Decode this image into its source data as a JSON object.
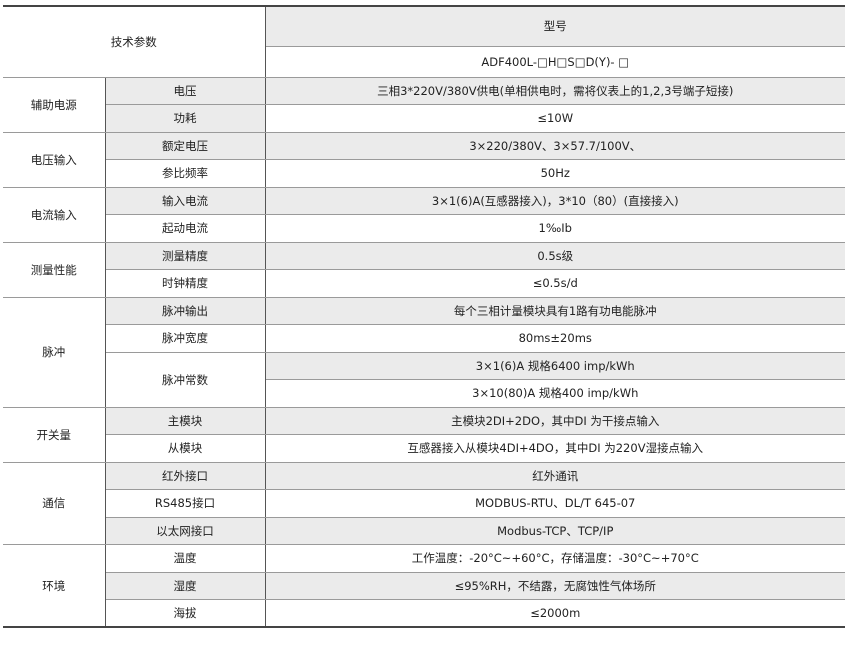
{
  "header": {
    "label": "技术参数",
    "model_title": "型号",
    "model_code": "ADF400L-□H□S□D(Y)- □"
  },
  "groups": [
    {
      "name": "辅助电源",
      "rows": [
        {
          "param": "电压",
          "value": "三相3*220V/380V供电(单相供电时，需将仪表上的1,2,3号端子短接)"
        },
        {
          "param": "功耗",
          "value": "≤10W"
        }
      ]
    },
    {
      "name": "电压输入",
      "rows": [
        {
          "param": "额定电压",
          "value": "3×220/380V、3×57.7/100V、"
        },
        {
          "param": "参比频率",
          "value": "50Hz"
        }
      ]
    },
    {
      "name": "电流输入",
      "rows": [
        {
          "param": "输入电流",
          "value": "3×1(6)A(互感器接入)，3*10（80）(直接接入)"
        },
        {
          "param": "起动电流",
          "value": "1‰Ib"
        }
      ]
    },
    {
      "name": "测量性能",
      "rows": [
        {
          "param": "测量精度",
          "value": "0.5s级"
        },
        {
          "param": "时钟精度",
          "value": "≤0.5s/d"
        }
      ]
    },
    {
      "name": "脉冲",
      "rows": [
        {
          "param": "脉冲输出",
          "value": "每个三相计量模块具有1路有功电能脉冲"
        },
        {
          "param": "脉冲宽度",
          "value": "80ms±20ms"
        },
        {
          "param": "脉冲常数",
          "values": [
            "3×1(6)A 规格6400 imp/kWh",
            "3×10(80)A 规格400 imp/kWh"
          ]
        }
      ]
    },
    {
      "name": "开关量",
      "rows": [
        {
          "param": "主模块",
          "value": "主模块2DI+2DO，其中DI 为干接点输入"
        },
        {
          "param": "从模块",
          "value": "互感器接入从模块4DI+4DO，其中DI 为220V湿接点输入"
        }
      ]
    },
    {
      "name": "通信",
      "rows": [
        {
          "param": "红外接口",
          "value": "红外通讯"
        },
        {
          "param": "RS485接口",
          "value": "MODBUS-RTU、DL/T 645-07"
        },
        {
          "param": "以太网接口",
          "value": "Modbus-TCP、TCP/IP"
        }
      ]
    },
    {
      "name": "环境",
      "rows": [
        {
          "param": "温度",
          "value": "工作温度：-20°C~+60°C，存储温度：-30°C~+70°C"
        },
        {
          "param": "湿度",
          "value": "≤95%RH，不结露，无腐蚀性气体场所"
        },
        {
          "param": "海拔",
          "value": "≤2000m"
        }
      ]
    }
  ]
}
